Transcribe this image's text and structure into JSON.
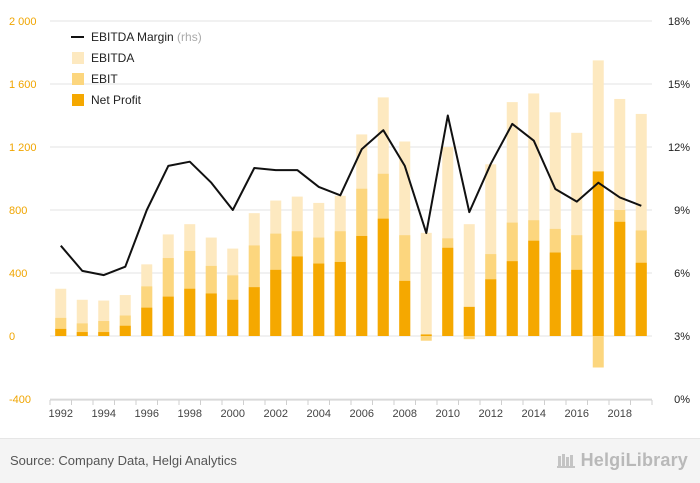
{
  "source_text": "Source: Company Data, Helgi Analytics",
  "brand_text": "HelgiLibrary",
  "colors": {
    "ebitda": "#fde9c0",
    "ebit": "#fcd67e",
    "net_profit": "#f5a800",
    "margin_line": "#111111",
    "left_axis_text": "#f0a500",
    "right_axis_text": "#222222"
  },
  "legend": [
    {
      "label": "EBITDA Margin",
      "suffix": "(rhs)",
      "kind": "line"
    },
    {
      "label": "EBITDA",
      "suffix": "",
      "kind": "ebitda"
    },
    {
      "label": "EBIT",
      "suffix": "",
      "kind": "ebit"
    },
    {
      "label": "Net Profit",
      "suffix": "",
      "kind": "net_profit"
    }
  ],
  "chart_data": {
    "type": "bar",
    "x_tick_labels": [
      "1992",
      "1994",
      "1996",
      "1998",
      "2000",
      "2002",
      "2004",
      "2006",
      "2008",
      "2010",
      "2012",
      "2014",
      "2016",
      "2018"
    ],
    "left_axis": {
      "ticks": [
        -400,
        0,
        400,
        800,
        1200,
        1600,
        2000
      ],
      "tick_labels": [
        "-400",
        "0",
        "400",
        "800",
        "1 200",
        "1 600",
        "2 000"
      ],
      "ylim": [
        -400,
        2000
      ]
    },
    "right_axis": {
      "ticks": [
        0,
        3,
        6,
        9,
        12,
        15,
        18
      ],
      "tick_labels": [
        "0%",
        "3%",
        "6%",
        "9%",
        "12%",
        "15%",
        "18%"
      ],
      "ylim": [
        0,
        18
      ]
    },
    "grid": true,
    "legend_position": "top-left",
    "categories": [
      1992,
      1993,
      1994,
      1995,
      1996,
      1997,
      1998,
      1999,
      2000,
      2001,
      2002,
      2003,
      2004,
      2005,
      2006,
      2007,
      2008,
      2009,
      2010,
      2011,
      2012,
      2013,
      2014,
      2015,
      2016,
      2017,
      2018,
      2019
    ],
    "series": [
      {
        "name": "EBITDA",
        "axis": "left",
        "values": [
          300,
          230,
          225,
          260,
          455,
          645,
          710,
          625,
          555,
          780,
          860,
          885,
          845,
          890,
          1280,
          1515,
          1235,
          655,
          1200,
          710,
          1090,
          1485,
          1540,
          1420,
          1290,
          1750,
          1505,
          1410
        ]
      },
      {
        "name": "EBIT",
        "axis": "left",
        "values": [
          115,
          80,
          95,
          130,
          315,
          495,
          540,
          445,
          385,
          575,
          650,
          665,
          625,
          665,
          935,
          1030,
          640,
          -30,
          620,
          -20,
          520,
          720,
          735,
          680,
          640,
          -200,
          800,
          670
        ]
      },
      {
        "name": "Net Profit",
        "axis": "left",
        "values": [
          45,
          25,
          25,
          65,
          180,
          250,
          300,
          270,
          230,
          310,
          420,
          505,
          460,
          470,
          635,
          745,
          350,
          10,
          560,
          185,
          360,
          475,
          605,
          530,
          420,
          1045,
          725,
          465
        ]
      },
      {
        "name": "EBITDA Margin",
        "axis": "right",
        "type": "line",
        "values": [
          7.3,
          6.1,
          5.9,
          6.3,
          9.0,
          11.1,
          11.3,
          10.3,
          9.0,
          11.0,
          10.9,
          10.9,
          10.1,
          9.7,
          11.9,
          12.8,
          11.1,
          7.9,
          13.5,
          8.9,
          11.2,
          13.1,
          12.3,
          10.0,
          9.4,
          10.3,
          9.6,
          9.2
        ]
      }
    ]
  }
}
